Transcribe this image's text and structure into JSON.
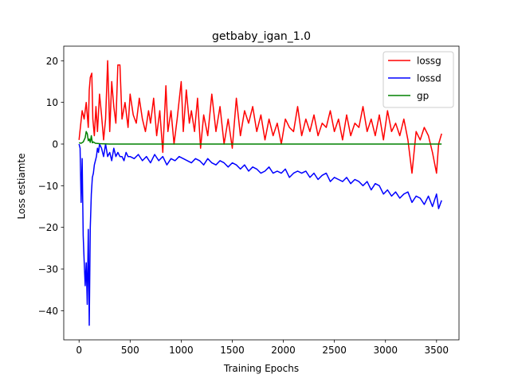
{
  "chart_data": {
    "type": "line",
    "title": "getbaby_igan_1.0",
    "xlabel": "Training Epochs",
    "ylabel": "Loss estiamte",
    "xlim": [
      -150,
      3720
    ],
    "ylim": [
      -47,
      23.5
    ],
    "xticks": [
      0,
      500,
      1000,
      1500,
      2000,
      2500,
      3000,
      3500
    ],
    "yticks": [
      -40,
      -30,
      -20,
      -10,
      0,
      10,
      20
    ],
    "xtick_labels": [
      "0",
      "500",
      "1000",
      "1500",
      "2000",
      "2500",
      "3000",
      "3500"
    ],
    "ytick_labels": [
      "−40",
      "−30",
      "−20",
      "−10",
      "0",
      "10",
      "20"
    ],
    "grid": false,
    "legend_position": "top-right",
    "series": [
      {
        "name": "lossg",
        "color": "#ff0000",
        "x": [
          0,
          30,
          50,
          70,
          90,
          100,
          110,
          125,
          135,
          150,
          165,
          180,
          200,
          220,
          240,
          260,
          280,
          290,
          300,
          320,
          340,
          360,
          380,
          400,
          420,
          450,
          480,
          500,
          530,
          560,
          590,
          620,
          650,
          680,
          700,
          730,
          760,
          790,
          820,
          850,
          870,
          900,
          930,
          960,
          1000,
          1020,
          1050,
          1080,
          1100,
          1130,
          1160,
          1190,
          1220,
          1260,
          1300,
          1340,
          1380,
          1420,
          1460,
          1500,
          1540,
          1580,
          1620,
          1660,
          1700,
          1740,
          1780,
          1820,
          1860,
          1900,
          1940,
          1980,
          2020,
          2060,
          2100,
          2140,
          2180,
          2220,
          2260,
          2300,
          2340,
          2380,
          2420,
          2460,
          2500,
          2540,
          2580,
          2620,
          2660,
          2700,
          2740,
          2780,
          2820,
          2860,
          2900,
          2940,
          2980,
          3020,
          3060,
          3100,
          3140,
          3180,
          3220,
          3260,
          3300,
          3340,
          3380,
          3420,
          3460,
          3500,
          3520,
          3550
        ],
        "y": [
          1,
          8,
          6,
          10,
          4,
          13,
          16,
          17,
          6,
          2,
          9,
          3,
          12,
          7,
          1,
          6,
          20,
          12,
          3,
          15,
          9,
          5,
          19,
          19,
          6,
          10,
          4,
          12,
          7,
          5,
          11,
          6,
          3,
          8,
          5,
          11,
          2,
          8,
          -2,
          14,
          3,
          8,
          0,
          6,
          15,
          3,
          13,
          5,
          8,
          3,
          11,
          -1,
          7,
          2,
          12,
          3,
          9,
          0,
          6,
          -1,
          11,
          2,
          8,
          5,
          9,
          3,
          7,
          1,
          6,
          2,
          5,
          0,
          6,
          4,
          3,
          9,
          2,
          6,
          3,
          7,
          2,
          5,
          4,
          8,
          3,
          6,
          1,
          7,
          2,
          5,
          4,
          9,
          3,
          6,
          2,
          7,
          1,
          8,
          3,
          5,
          2,
          6,
          1,
          -7,
          3,
          1,
          4,
          2,
          -2,
          -7,
          0,
          2.5
        ]
      },
      {
        "name": "lossd",
        "color": "#0000ff",
        "x": [
          0,
          10,
          20,
          30,
          40,
          50,
          60,
          70,
          80,
          90,
          100,
          110,
          120,
          130,
          140,
          150,
          160,
          170,
          180,
          190,
          200,
          220,
          240,
          260,
          280,
          300,
          320,
          340,
          360,
          380,
          400,
          420,
          440,
          460,
          480,
          500,
          540,
          580,
          620,
          660,
          700,
          740,
          780,
          820,
          860,
          900,
          940,
          980,
          1020,
          1060,
          1100,
          1140,
          1180,
          1220,
          1260,
          1300,
          1340,
          1380,
          1420,
          1460,
          1500,
          1540,
          1580,
          1620,
          1660,
          1700,
          1740,
          1780,
          1820,
          1860,
          1900,
          1940,
          1980,
          2020,
          2060,
          2100,
          2140,
          2180,
          2220,
          2260,
          2300,
          2340,
          2380,
          2420,
          2460,
          2500,
          2540,
          2580,
          2620,
          2660,
          2700,
          2740,
          2780,
          2820,
          2860,
          2900,
          2940,
          2980,
          3020,
          3060,
          3100,
          3140,
          3180,
          3220,
          3260,
          3300,
          3340,
          3380,
          3420,
          3460,
          3500,
          3520,
          3550
        ],
        "y": [
          0,
          -1,
          -14,
          -3.5,
          -22,
          -28,
          -34,
          -28.5,
          -38.5,
          -20.5,
          -43.5,
          -20,
          -12,
          -8,
          -7,
          -5,
          -4,
          -3,
          -1,
          -2,
          0,
          -1,
          -3,
          0,
          -3,
          -2,
          -4,
          -1,
          -3,
          -2,
          -3,
          -3,
          -4,
          -2,
          -3,
          -3,
          -3.5,
          -2.5,
          -4,
          -3,
          -4.5,
          -2.5,
          -4,
          -3,
          -5,
          -3.5,
          -4,
          -3,
          -3.5,
          -4,
          -4.5,
          -3.5,
          -4,
          -5,
          -3.5,
          -4.5,
          -5,
          -4,
          -4.5,
          -5.5,
          -4.5,
          -5,
          -6,
          -5,
          -6.5,
          -5.5,
          -6,
          -7,
          -6.5,
          -5.5,
          -7,
          -6.5,
          -7,
          -6,
          -8,
          -7,
          -6.5,
          -7,
          -6.5,
          -8,
          -7,
          -8.5,
          -7.5,
          -7,
          -9,
          -8,
          -8.5,
          -9,
          -8,
          -9.5,
          -8.5,
          -9,
          -10,
          -9,
          -11,
          -9.5,
          -10,
          -12,
          -11,
          -12.5,
          -11.5,
          -13,
          -12,
          -11.5,
          -14,
          -12.5,
          -13,
          -14.5,
          -12.5,
          -15,
          -12,
          -15.5,
          -13.5
        ]
      },
      {
        "name": "gp",
        "color": "#008000",
        "x": [
          0,
          20,
          40,
          60,
          70,
          80,
          90,
          100,
          110,
          120,
          130,
          140,
          160,
          200,
          300,
          500,
          1000,
          1500,
          2000,
          2500,
          3000,
          3550
        ],
        "y": [
          0.3,
          0.2,
          0.5,
          1.5,
          3,
          2.5,
          0.8,
          1.2,
          0.4,
          2,
          0.3,
          0.5,
          0.2,
          0.1,
          0,
          0,
          0,
          0,
          0,
          0,
          0,
          0
        ]
      }
    ]
  }
}
